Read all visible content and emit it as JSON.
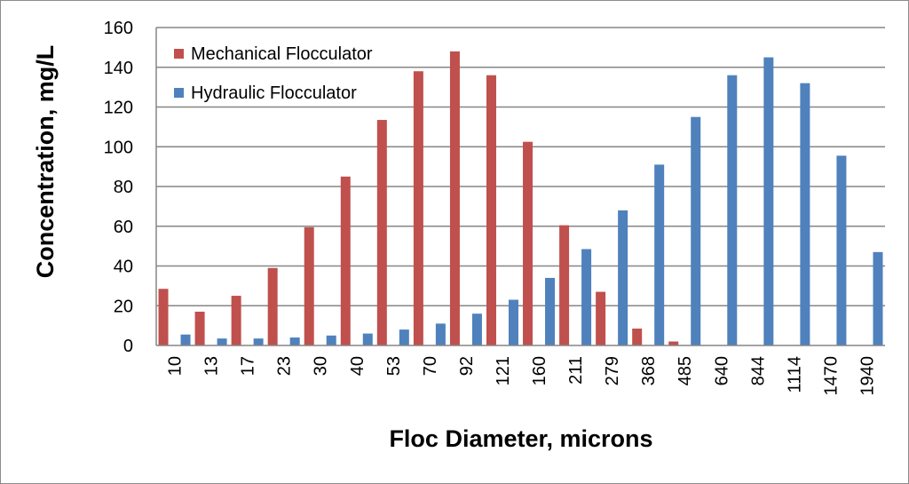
{
  "chart_data": {
    "type": "bar",
    "xlabel": "Floc Diameter, microns",
    "ylabel": "Concentration, mg/L",
    "ylim": [
      0,
      160
    ],
    "yticks": [
      0,
      20,
      40,
      60,
      80,
      100,
      120,
      140,
      160
    ],
    "grid": true,
    "legend_position": "top-left",
    "categories": [
      "10",
      "13",
      "17",
      "23",
      "30",
      "40",
      "53",
      "70",
      "92",
      "121",
      "160",
      "211",
      "279",
      "368",
      "485",
      "640",
      "844",
      "1114",
      "1470",
      "1940"
    ],
    "series": [
      {
        "name": "Mechanical Flocculator",
        "color": "#c0504d",
        "values": [
          28.5,
          17,
          25,
          39,
          59.5,
          85,
          113.5,
          138,
          148,
          136,
          102.5,
          60.5,
          27,
          8.5,
          2,
          0,
          0,
          0,
          0,
          0
        ]
      },
      {
        "name": "Hydraulic Flocculator",
        "color": "#4f81bd",
        "values": [
          5.5,
          3.5,
          3.5,
          4,
          5,
          6,
          8,
          11,
          16,
          23,
          34,
          48.5,
          68,
          91,
          115,
          136,
          145,
          132,
          95.5,
          47
        ]
      }
    ]
  }
}
